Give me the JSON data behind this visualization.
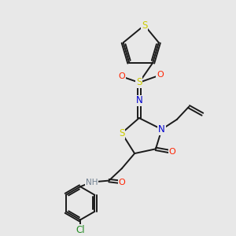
{
  "bg_color": "#e8e8e8",
  "atom_colors": {
    "C": "#000000",
    "H": "#708090",
    "N": "#0000cd",
    "O": "#ff2200",
    "S": "#cccc00",
    "Cl": "#228b22"
  },
  "bond_color": "#1a1a1a",
  "figsize": [
    3.0,
    3.0
  ],
  "dpi": 100
}
